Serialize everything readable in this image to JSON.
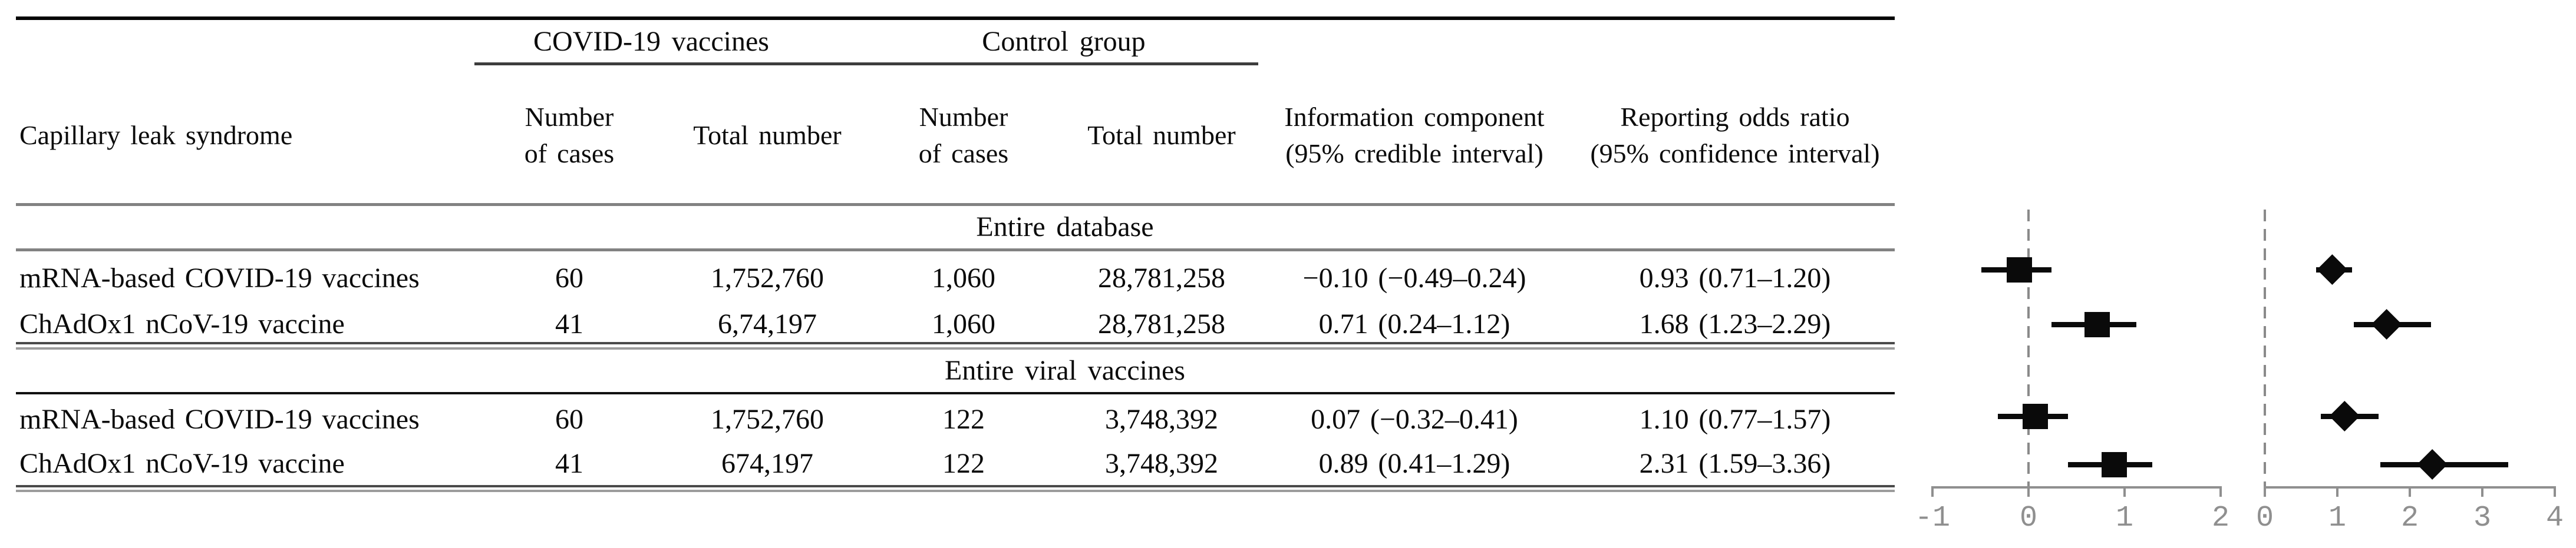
{
  "table": {
    "groups": [
      {
        "label": "COVID-19 vaccines"
      },
      {
        "label": "Control group"
      }
    ],
    "columns": [
      {
        "id": "name",
        "lines": [
          "Capillary leak syndrome"
        ]
      },
      {
        "id": "vax_cases",
        "lines": [
          "Number",
          "of cases"
        ]
      },
      {
        "id": "vax_total",
        "lines": [
          "Total number"
        ]
      },
      {
        "id": "ctrl_cases",
        "lines": [
          "Number",
          "of cases"
        ]
      },
      {
        "id": "ctrl_total",
        "lines": [
          "Total number"
        ]
      },
      {
        "id": "ic",
        "lines": [
          "Information component",
          "(95% credible interval)"
        ]
      },
      {
        "id": "ror",
        "lines": [
          "Reporting odds ratio",
          "(95% confidence interval)"
        ]
      }
    ],
    "sections": [
      {
        "title": "Entire database",
        "rows": [
          {
            "name": "mRNA-based COVID-19 vaccines",
            "vax_cases": "60",
            "vax_total": "1,752,760",
            "ctrl_cases": "1,060",
            "ctrl_total": "28,781,258",
            "ic": "−0.10 (−0.49–0.24)",
            "ror": "0.93 (0.71–1.20)"
          },
          {
            "name": "ChAdOx1 nCoV-19 vaccine",
            "vax_cases": "41",
            "vax_total": "6,74,197",
            "ctrl_cases": "1,060",
            "ctrl_total": "28,781,258",
            "ic": "0.71 (0.24–1.12)",
            "ror": "1.68 (1.23–2.29)"
          }
        ]
      },
      {
        "title": "Entire viral vaccines",
        "rows": [
          {
            "name": "mRNA-based COVID-19 vaccines",
            "vax_cases": "60",
            "vax_total": "1,752,760",
            "ctrl_cases": "122",
            "ctrl_total": "3,748,392",
            "ic": "0.07 (−0.32–0.41)",
            "ror": "1.10 (0.77–1.57)"
          },
          {
            "name": "ChAdOx1 nCoV-19 vaccine",
            "vax_cases": "41",
            "vax_total": "674,197",
            "ctrl_cases": "122",
            "ctrl_total": "3,748,392",
            "ic": "0.89 (0.41–1.29)",
            "ror": "2.31 (1.59–3.36)"
          }
        ]
      }
    ]
  },
  "chart_data": [
    {
      "type": "scatter",
      "title": "Information component (95% credible interval)",
      "marker": "square",
      "x_axis": {
        "min": -1,
        "max": 2,
        "ticks": [
          -1,
          0,
          1,
          2
        ]
      },
      "reference_line_x": 0,
      "grid": false,
      "points": [
        {
          "row": "Entire database - mRNA-based COVID-19 vaccines",
          "value": -0.1,
          "ci_low": -0.49,
          "ci_high": 0.24
        },
        {
          "row": "Entire database - ChAdOx1 nCoV-19 vaccine",
          "value": 0.71,
          "ci_low": 0.24,
          "ci_high": 1.12
        },
        {
          "row": "Entire viral vaccines - mRNA-based COVID-19 vaccines",
          "value": 0.07,
          "ci_low": -0.32,
          "ci_high": 0.41
        },
        {
          "row": "Entire viral vaccines - ChAdOx1 nCoV-19 vaccine",
          "value": 0.89,
          "ci_low": 0.41,
          "ci_high": 1.29
        }
      ]
    },
    {
      "type": "scatter",
      "title": "Reporting odds ratio (95% confidence interval)",
      "marker": "diamond",
      "x_axis": {
        "min": 0,
        "max": 4,
        "ticks": [
          0,
          1,
          2,
          3,
          4
        ]
      },
      "reference_line_x": 0,
      "grid": false,
      "points": [
        {
          "row": "Entire database - mRNA-based COVID-19 vaccines",
          "value": 0.93,
          "ci_low": 0.71,
          "ci_high": 1.2
        },
        {
          "row": "Entire database - ChAdOx1 nCoV-19 vaccine",
          "value": 1.68,
          "ci_low": 1.23,
          "ci_high": 2.29
        },
        {
          "row": "Entire viral vaccines - mRNA-based COVID-19 vaccines",
          "value": 1.1,
          "ci_low": 0.77,
          "ci_high": 1.57
        },
        {
          "row": "Entire viral vaccines - ChAdOx1 nCoV-19 vaccine",
          "value": 2.31,
          "ci_low": 1.59,
          "ci_high": 3.36
        }
      ]
    }
  ]
}
